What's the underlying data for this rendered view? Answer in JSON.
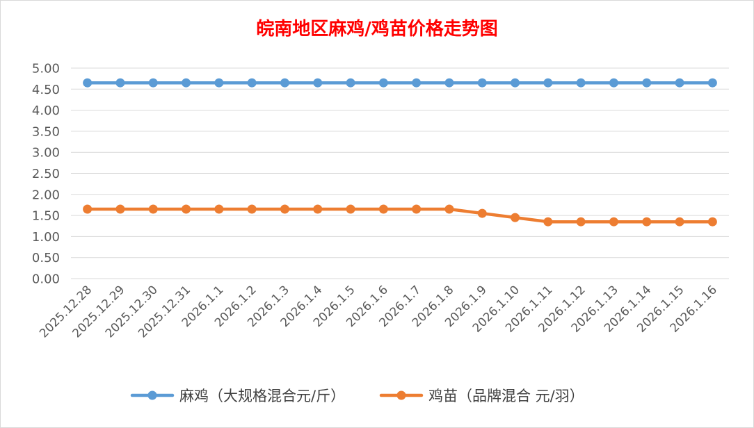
{
  "chart_data": {
    "type": "line",
    "title": "皖南地区麻鸡/鸡苗价格走势图",
    "categories": [
      "2025.12.28",
      "2025.12.29",
      "2025.12.30",
      "2025.12.31",
      "2026.1.1",
      "2026.1.2",
      "2026.1.3",
      "2026.1.4",
      "2026.1.5",
      "2026.1.6",
      "2026.1.7",
      "2026.1.8",
      "2026.1.9",
      "2026.1.10",
      "2026.1.11",
      "2026.1.12",
      "2026.1.13",
      "2026.1.14",
      "2026.1.15",
      "2026.1.16"
    ],
    "y_ticks": [
      "0.00",
      "0.50",
      "1.00",
      "1.50",
      "2.00",
      "2.50",
      "3.00",
      "3.50",
      "4.00",
      "4.50",
      "5.00"
    ],
    "ylim": [
      0,
      5
    ],
    "grid": true,
    "legend_position": "bottom",
    "series": [
      {
        "name": "麻鸡（大规格混合元/斤）",
        "color": "#5b9bd5",
        "values": [
          4.65,
          4.65,
          4.65,
          4.65,
          4.65,
          4.65,
          4.65,
          4.65,
          4.65,
          4.65,
          4.65,
          4.65,
          4.65,
          4.65,
          4.65,
          4.65,
          4.65,
          4.65,
          4.65,
          4.65
        ]
      },
      {
        "name": "鸡苗（品牌混合 元/羽）",
        "color": "#ed7d31",
        "values": [
          1.65,
          1.65,
          1.65,
          1.65,
          1.65,
          1.65,
          1.65,
          1.65,
          1.65,
          1.65,
          1.65,
          1.65,
          1.55,
          1.45,
          1.35,
          1.35,
          1.35,
          1.35,
          1.35,
          1.35
        ]
      }
    ]
  }
}
